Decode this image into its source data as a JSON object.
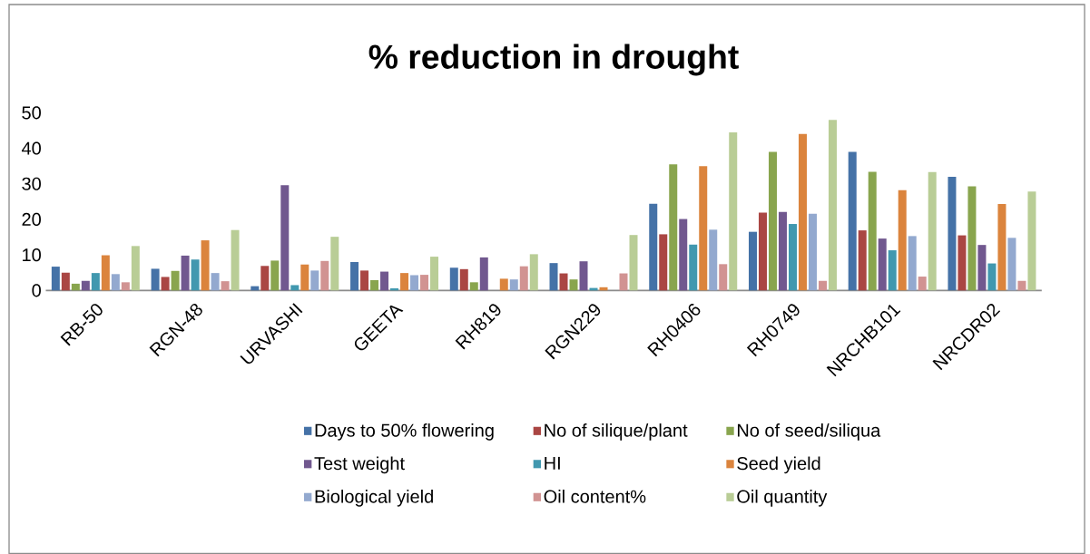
{
  "chart_data": {
    "type": "bar",
    "title": "**% reduction in drought**",
    "categories": [
      "RB-50",
      "RGN-48",
      "URVASHI",
      "GEETA",
      "RH819",
      "RGN229",
      "RH0406",
      "RH0749",
      "NRCHB101",
      "NRCDR02"
    ],
    "series": [
      {
        "name": "Days to 50% flowering",
        "color": "#4572a7",
        "values": [
          6.7,
          6.1,
          1.2,
          8.0,
          6.4,
          7.7,
          24.4,
          16.5,
          39.0,
          32.0
        ]
      },
      {
        "name": "No of silique/plant",
        "color": "#aa4643",
        "values": [
          5.0,
          3.8,
          6.9,
          5.6,
          6.0,
          4.8,
          15.8,
          21.9,
          16.9,
          15.5
        ]
      },
      {
        "name": "No of seed/siliqua",
        "color": "#89a54e",
        "values": [
          1.9,
          5.5,
          8.4,
          2.9,
          2.3,
          3.1,
          35.5,
          39.0,
          33.4,
          29.3
        ]
      },
      {
        "name": "Test weight",
        "color": "#71588f",
        "values": [
          2.7,
          9.8,
          29.6,
          5.3,
          9.3,
          8.2,
          20.1,
          22.1,
          14.6,
          12.8
        ]
      },
      {
        "name": "HI",
        "color": "#4198af",
        "values": [
          4.9,
          8.7,
          1.5,
          0.6,
          0.0,
          0.7,
          12.9,
          18.7,
          11.3,
          7.6
        ]
      },
      {
        "name": "Seed yield",
        "color": "#db843d",
        "values": [
          9.9,
          14.1,
          7.3,
          4.9,
          3.3,
          0.9,
          35.0,
          44.0,
          28.2,
          24.3
        ]
      },
      {
        "name": "Biological yield",
        "color": "#93a9cf",
        "values": [
          4.6,
          4.9,
          5.6,
          4.3,
          3.1,
          null,
          17.1,
          21.6,
          15.3,
          14.8
        ]
      },
      {
        "name": "Oil content%",
        "color": "#d19392",
        "values": [
          2.3,
          2.6,
          8.3,
          4.4,
          6.8,
          4.8,
          7.4,
          2.7,
          3.9,
          2.7
        ]
      },
      {
        "name": "Oil quantity",
        "color": "#b9cd96",
        "values": [
          12.5,
          17.0,
          15.1,
          9.5,
          10.2,
          15.6,
          44.5,
          48.0,
          33.3,
          27.8
        ]
      }
    ],
    "ylim": [
      0,
      50
    ],
    "yticks": [
      0,
      10,
      20,
      30,
      40,
      50
    ],
    "legend": "bottom"
  }
}
